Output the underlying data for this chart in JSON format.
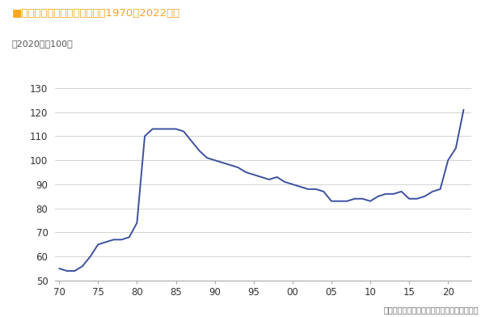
{
  "title_square": "■",
  "title_text": "電気料金の推移（全国平均、1970～2022年）",
  "title_color": "#F5A623",
  "ylabel_note": "（2020年＝100）",
  "source_note": "（出所）総務省「消費者物価指数」より作成",
  "line_color": "#3C50A0",
  "line_width": 1.4,
  "x_values": [
    70,
    71,
    72,
    73,
    74,
    75,
    76,
    77,
    78,
    79,
    80,
    81,
    82,
    83,
    84,
    85,
    86,
    87,
    88,
    89,
    90,
    91,
    92,
    93,
    94,
    95,
    96,
    97,
    98,
    99,
    100,
    101,
    102,
    103,
    104,
    105,
    106,
    107,
    108,
    109,
    110,
    111,
    112,
    113,
    114,
    115,
    116,
    117,
    118,
    119,
    120,
    121,
    122
  ],
  "y_values": [
    55,
    54,
    54,
    56,
    60,
    65,
    66,
    67,
    67,
    68,
    74,
    110,
    113,
    113,
    113,
    113,
    112,
    108,
    104,
    101,
    100,
    99,
    98,
    97,
    95,
    94,
    93,
    92,
    93,
    91,
    90,
    89,
    88,
    88,
    87,
    83,
    83,
    83,
    84,
    84,
    83,
    85,
    86,
    86,
    87,
    84,
    84,
    85,
    87,
    88,
    100,
    105,
    121
  ],
  "yticks": [
    50,
    60,
    70,
    80,
    90,
    100,
    110,
    120,
    130
  ],
  "xtick_positions": [
    70,
    75,
    80,
    85,
    90,
    95,
    100,
    105,
    110,
    115,
    120
  ],
  "xtick_labels": [
    "70",
    "75",
    "80",
    "85",
    "90",
    "95",
    "00",
    "05",
    "10",
    "15",
    "20"
  ],
  "xlim": [
    69.5,
    123
  ],
  "ylim": [
    50,
    133
  ],
  "grid_color": "#CCCCCC",
  "bg_color": "#FFFFFF"
}
